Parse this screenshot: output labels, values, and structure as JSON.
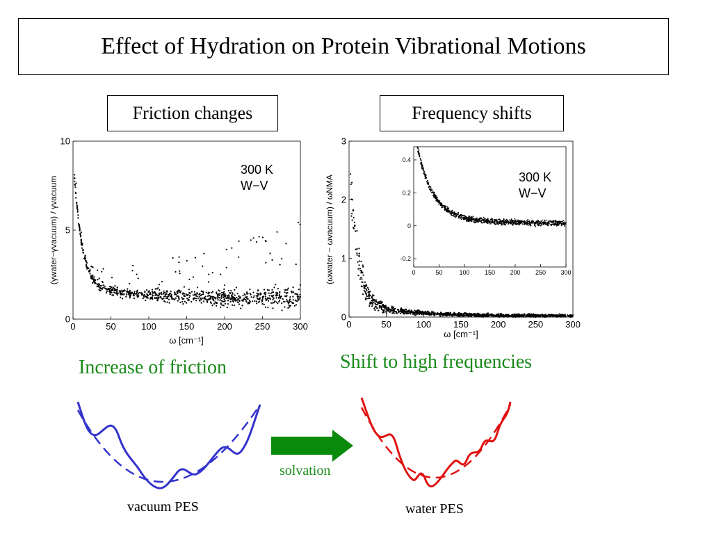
{
  "slide_title": "Effect of Hydration on Protein Vibrational Motions",
  "left_panel": {
    "heading": "Friction changes",
    "conclusion": "Increase of friction"
  },
  "right_panel": {
    "heading": "Frequency shifts",
    "conclusion": "Shift to high frequencies"
  },
  "chart_data": [
    {
      "type": "scatter",
      "title": "",
      "xlabel": "ω [cm⁻¹]",
      "ylabel": "(γwater−γvacuum) / γvacuum",
      "xlim": [
        0,
        300
      ],
      "ylim": [
        0,
        10
      ],
      "x_ticks": [
        "0",
        "50",
        "100",
        "150",
        "200",
        "250",
        "300"
      ],
      "y_ticks": [
        "0",
        "5",
        "10"
      ],
      "annotation": [
        "300 K",
        "W−V"
      ],
      "trend": "sharp decay from ~8 near ω≈5 to ~1.5 by ω≈50, then slowly declining to ~1 at ω=300 with scattered outliers up to ~5"
    },
    {
      "type": "scatter",
      "title": "",
      "xlabel": "ω [cm⁻¹]",
      "ylabel": "(ωwater − ωvacuum) / ωNMA",
      "xlim": [
        0,
        300
      ],
      "ylim": [
        0,
        3
      ],
      "x_ticks": [
        "0",
        "50",
        "100",
        "150",
        "200",
        "250",
        "300"
      ],
      "y_ticks": [
        "0",
        "1",
        "2",
        "3"
      ],
      "trend": "decay from ~2.4 near ω≈5 to ~0.2 by ω≈50, approaching ~0 by ω=300",
      "inset": {
        "type": "scatter",
        "xlim": [
          0,
          300
        ],
        "ylim": [
          -0.25,
          0.48
        ],
        "x_ticks": [
          "0",
          "50",
          "100",
          "150",
          "200",
          "250",
          "300"
        ],
        "y_ticks": [
          "-0.2",
          "0",
          "0.2",
          "0.4"
        ],
        "annotation": [
          "300 K",
          "W−V"
        ],
        "trend": "decay from ~0.45 at ω≈20 to ~0.02 by ω=300"
      }
    }
  ],
  "diagram": {
    "left_caption": "vacuum PES",
    "arrow_label": "solvation",
    "right_caption": "water PES",
    "left_color": "#3333cc",
    "right_color": "#e01010",
    "arrow_color": "#0a8a0a"
  }
}
